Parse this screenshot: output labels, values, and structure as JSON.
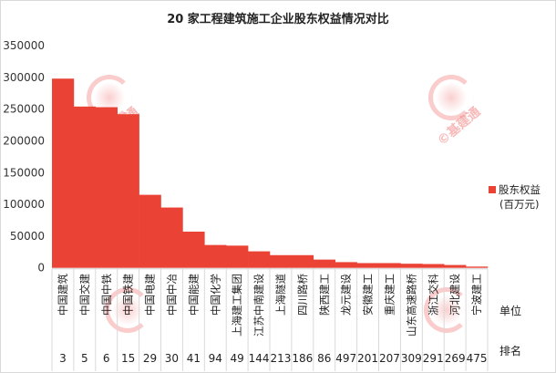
{
  "chart_data": {
    "type": "bar",
    "title": "20 家工程建筑施工企业股东权益情况对比",
    "categories": [
      "中国建筑",
      "中国交建",
      "中国中铁",
      "中国铁建",
      "中国电建",
      "中国中冶",
      "中国能建",
      "中国化学",
      "上海建工集团",
      "江苏中南建设",
      "上海隧道",
      "四川路桥",
      "陕西建工",
      "龙元建设",
      "安徽建工",
      "重庆建工",
      "山东高速路桥",
      "浙江交科",
      "河北建设",
      "宁波建工"
    ],
    "ranks": [
      "3",
      "5",
      "6",
      "15",
      "29",
      "30",
      "41",
      "94",
      "49",
      "144",
      "213",
      "186",
      "86",
      "497",
      "201",
      "207",
      "309",
      "291",
      "269",
      "475"
    ],
    "series": [
      {
        "name": "股东权益",
        "values": [
          298000,
          254000,
          253000,
          242000,
          115000,
          95000,
          57000,
          36000,
          35000,
          26000,
          20000,
          20000,
          13000,
          9000,
          7500,
          7500,
          6500,
          6000,
          4500,
          2000
        ]
      }
    ],
    "yticks": [
      "0",
      "50000",
      "100000",
      "150000",
      "200000",
      "250000",
      "300000",
      "350000"
    ],
    "ylim": [
      0,
      350000
    ],
    "legend": {
      "label": "股东权益",
      "unit": "(百万元)",
      "position": "right"
    },
    "row_labels": {
      "unit": "单位",
      "rank": "排名"
    },
    "grid": false,
    "bar_color": "#ea4335"
  },
  "watermark": "基建通"
}
